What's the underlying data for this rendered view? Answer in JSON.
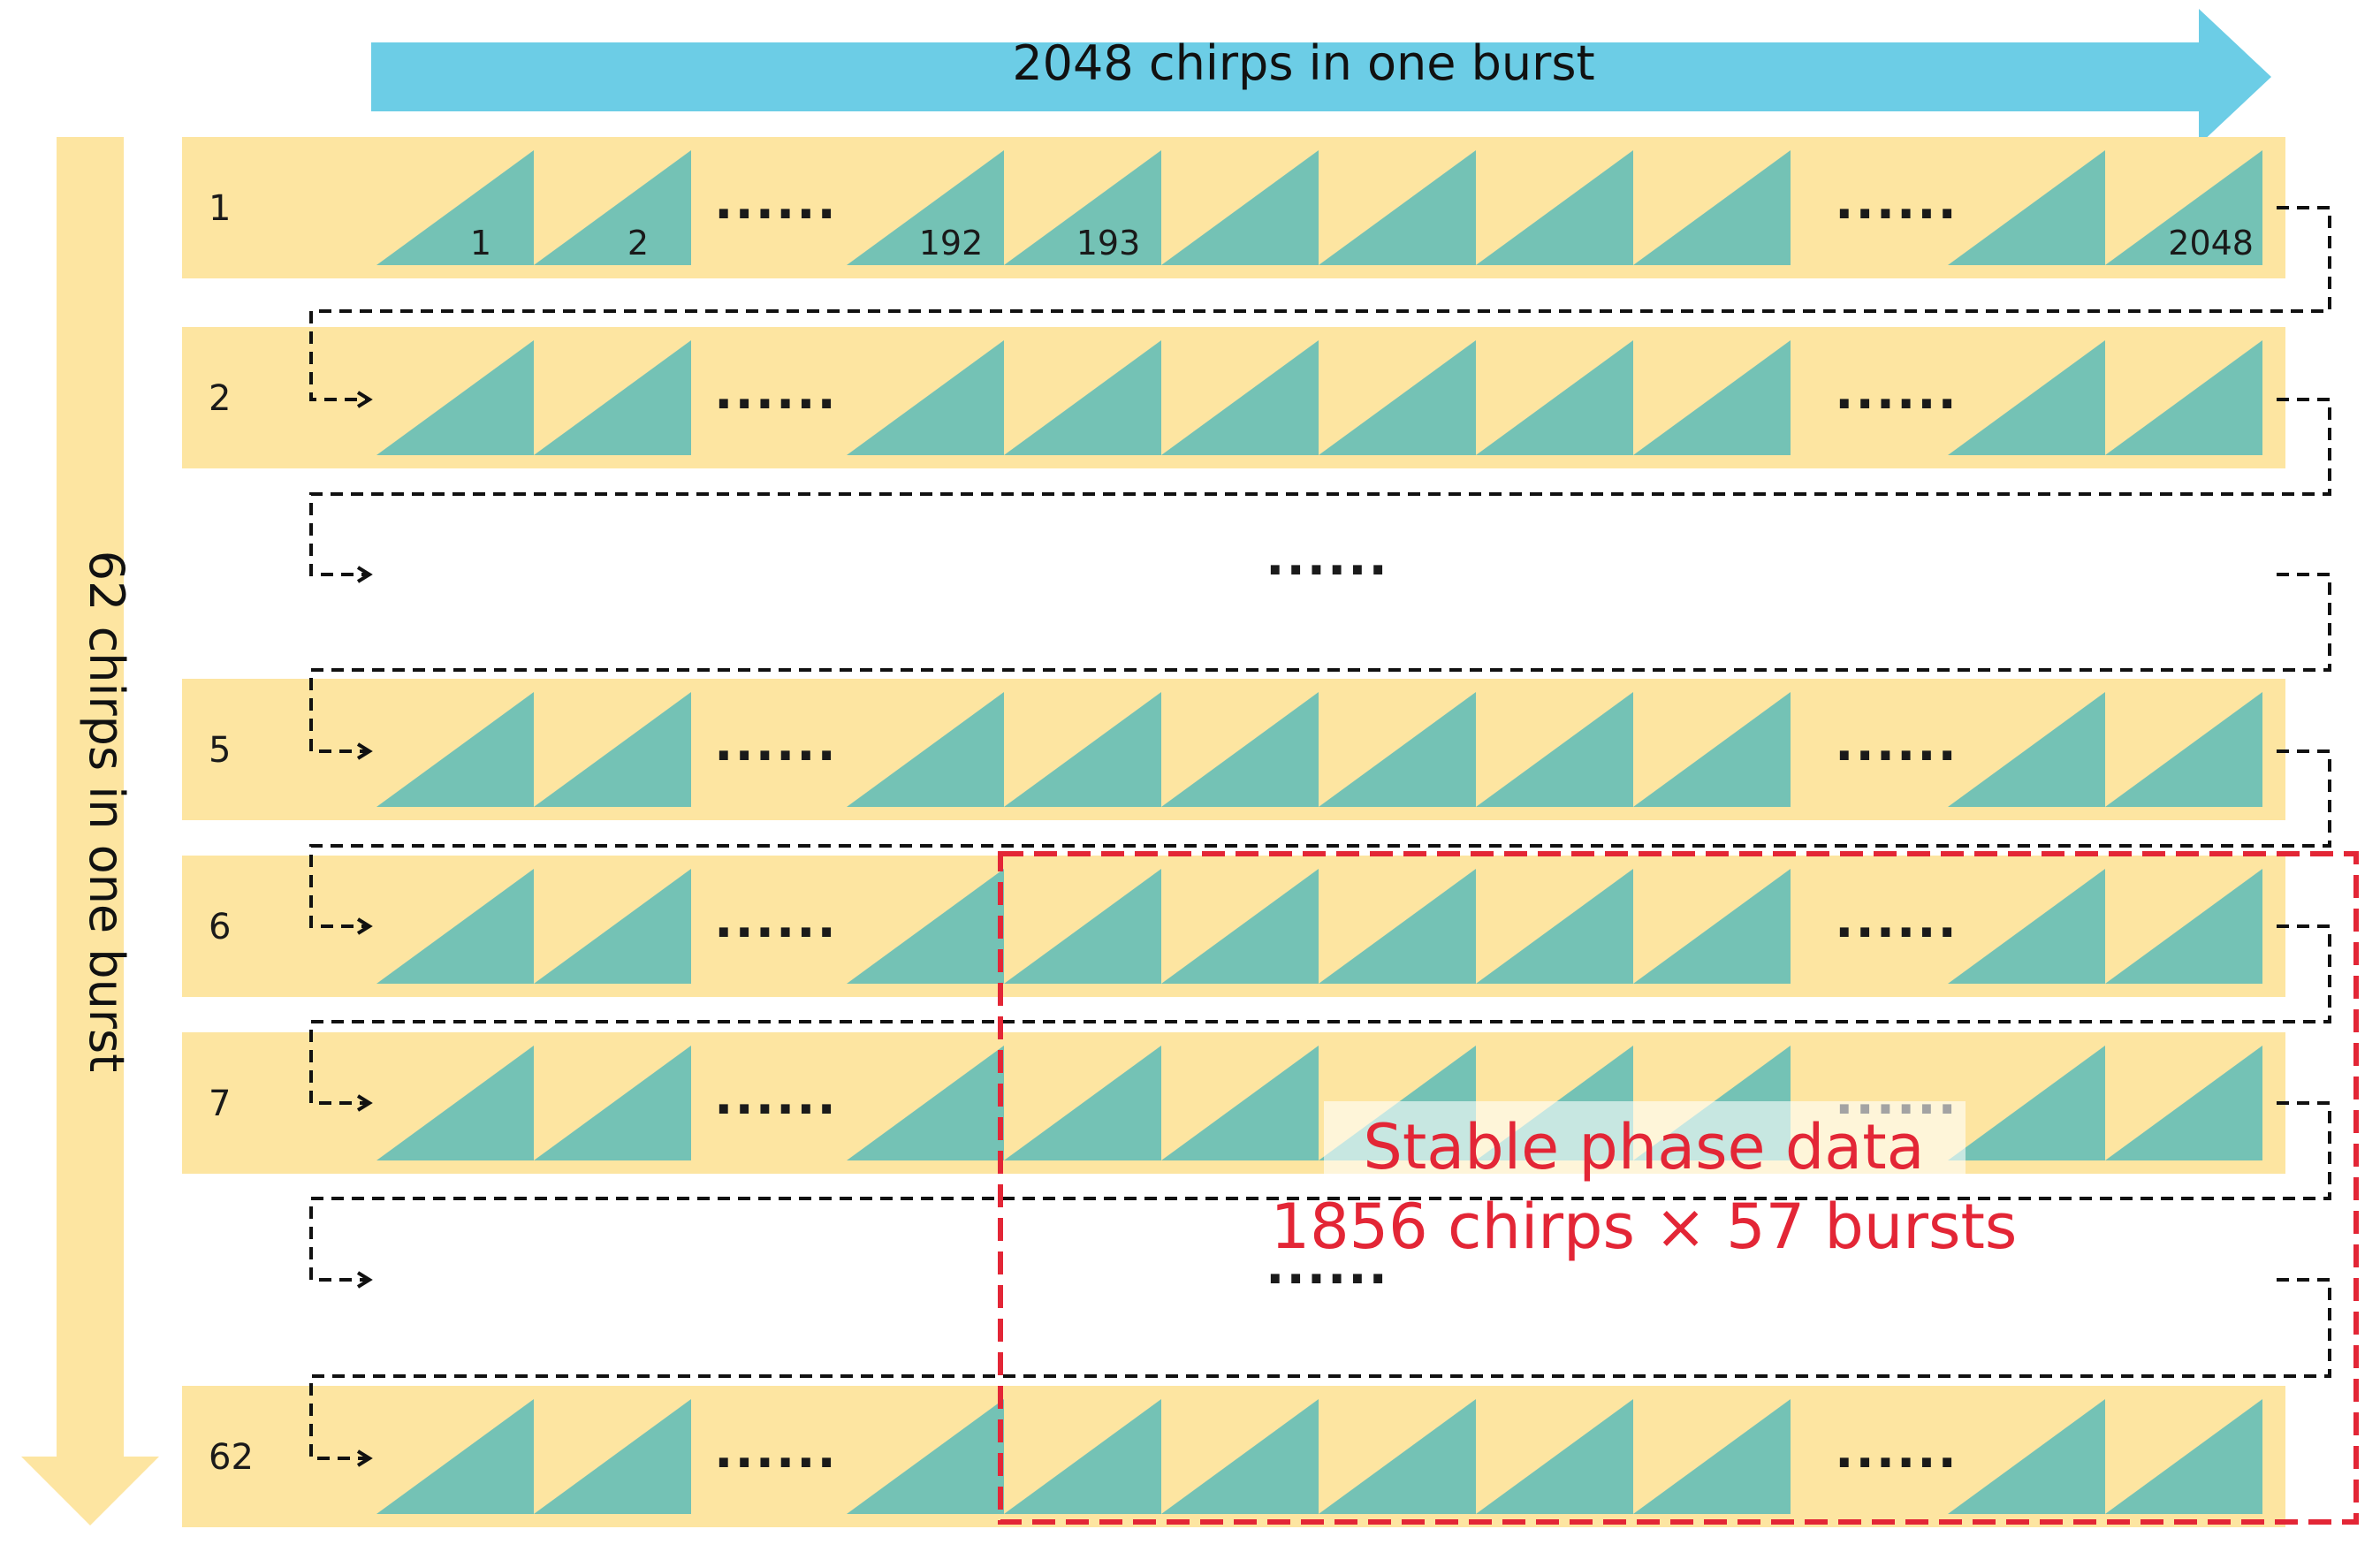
{
  "top_arrow": {
    "label": "2048 chirps in one burst"
  },
  "side_arrow": {
    "label": "62 chirps in one burst"
  },
  "rows": [
    {
      "label": "1",
      "chirp_labels": [
        "1",
        "2",
        "192",
        "193",
        "",
        "",
        "",
        "",
        "",
        "2048"
      ]
    },
    {
      "label": "2",
      "chirp_labels": []
    },
    {
      "label": "5",
      "chirp_labels": []
    },
    {
      "label": "6",
      "chirp_labels": []
    },
    {
      "label": "7",
      "chirp_labels": []
    },
    {
      "label": "62",
      "chirp_labels": []
    }
  ],
  "ellipsis": "......",
  "stable_region": {
    "line1": "Stable phase data",
    "line2": "1856 chirps × 57 bursts"
  },
  "colors": {
    "top_arrow": "#6CCDE6",
    "side_arrow": "#FDE5A1",
    "row_band": "#FDE5A1",
    "chirp": "#74C2B5",
    "dashed_box": "#E32636",
    "stable_text": "#E32636",
    "connector": "#111111"
  }
}
